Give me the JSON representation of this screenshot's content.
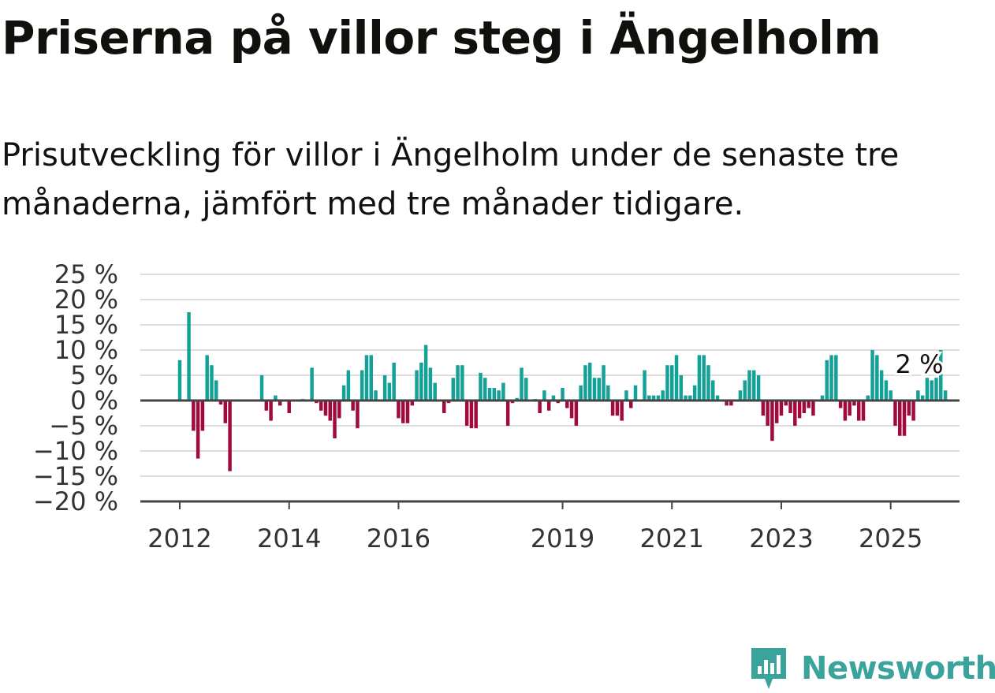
{
  "title": "Priserna på villor steg i Ängelholm",
  "subtitle": "Prisutveckling för villor i Ängelholm under de senaste tre månaderna, jämfört med tre månader tidigare.",
  "brand": "Newsworthy",
  "colors": {
    "positive": "#14a197",
    "negative": "#a00a3d",
    "grid": "#dddddd",
    "axis": "#444444"
  },
  "chart_data": {
    "type": "bar",
    "y_ticks": [
      {
        "value": 25,
        "label": "25 %"
      },
      {
        "value": 20,
        "label": "20 %"
      },
      {
        "value": 15,
        "label": "15 %"
      },
      {
        "value": 10,
        "label": "10 %"
      },
      {
        "value": 5,
        "label": "5 %"
      },
      {
        "value": 0,
        "label": "0 %"
      },
      {
        "value": -5,
        "label": "−5 %"
      },
      {
        "value": -10,
        "label": "−10 %"
      },
      {
        "value": -15,
        "label": "−15 %"
      },
      {
        "value": -20,
        "label": "−20 %"
      }
    ],
    "ylim": [
      -20,
      25
    ],
    "x_ticks": [
      {
        "month": "2012-01",
        "label": "2012"
      },
      {
        "month": "2014-01",
        "label": "2014"
      },
      {
        "month": "2016-01",
        "label": "2016"
      },
      {
        "month": "2019-01",
        "label": "2019"
      },
      {
        "month": "2021-01",
        "label": "2021"
      },
      {
        "month": "2023-01",
        "label": "2023"
      },
      {
        "month": "2025-01",
        "label": "2025"
      }
    ],
    "grid": true,
    "last_value_label": "2 %",
    "series": [
      {
        "start": "2012-01",
        "values": [
          8,
          0,
          17.5,
          -6,
          -11.5,
          -6,
          9,
          7,
          4,
          -0.8,
          -4.5,
          -14,
          0,
          0,
          0,
          0,
          0,
          0,
          0,
          0,
          0,
          0,
          0,
          0,
          0,
          0,
          0,
          0,
          0,
          0,
          0,
          0,
          0,
          0,
          0,
          0,
          0,
          0,
          0,
          0,
          0,
          0,
          0,
          0,
          0,
          0,
          0,
          0
        ]
      },
      {
        "start": "2013-06",
        "values": [
          0,
          5,
          -2,
          -4,
          1,
          -1,
          0,
          -2.5,
          0,
          0,
          0.3,
          0,
          6.5,
          -0.5,
          -2,
          -3,
          -4,
          -7.5,
          -3.5,
          3,
          6,
          -2,
          -5.5,
          6,
          9,
          9,
          2,
          0,
          5,
          3.5,
          7.5,
          -3.5,
          -4.5,
          -4.5,
          -1,
          6,
          7.5,
          11,
          6.5,
          3.5,
          0,
          -2.5,
          -0.5,
          4.5,
          7,
          7,
          -5,
          -5.5,
          -5.5,
          5.5,
          4.5,
          2.5,
          2.5,
          2,
          3.5,
          -5,
          -0.5,
          0.5,
          6.5,
          4.5,
          0,
          0.3,
          -2.5,
          2,
          -2,
          1,
          -0.5,
          2.5,
          -1.5,
          -3.5,
          -5,
          3,
          7,
          7.5,
          4.5,
          4.5,
          7,
          3,
          -3,
          -3,
          -4,
          2,
          -1.5,
          3,
          0,
          6,
          1,
          1,
          1,
          2,
          7,
          7,
          9,
          5,
          1,
          1,
          3,
          9,
          9,
          7,
          4,
          1,
          0,
          -1,
          -1,
          0,
          2,
          4,
          6,
          6,
          5,
          -3,
          -5,
          -8,
          -4.5,
          -3,
          -1,
          -2.5,
          -5,
          -3.5,
          -2.5,
          -1.5,
          -3,
          0,
          1,
          8,
          9,
          9,
          -1.5,
          -4,
          -3,
          -1,
          -4,
          -4,
          1,
          10,
          9,
          6,
          4,
          2,
          -5,
          -7,
          -7,
          -3,
          -4,
          2,
          1,
          4.5,
          4,
          4.5,
          10,
          2
        ]
      }
    ]
  }
}
